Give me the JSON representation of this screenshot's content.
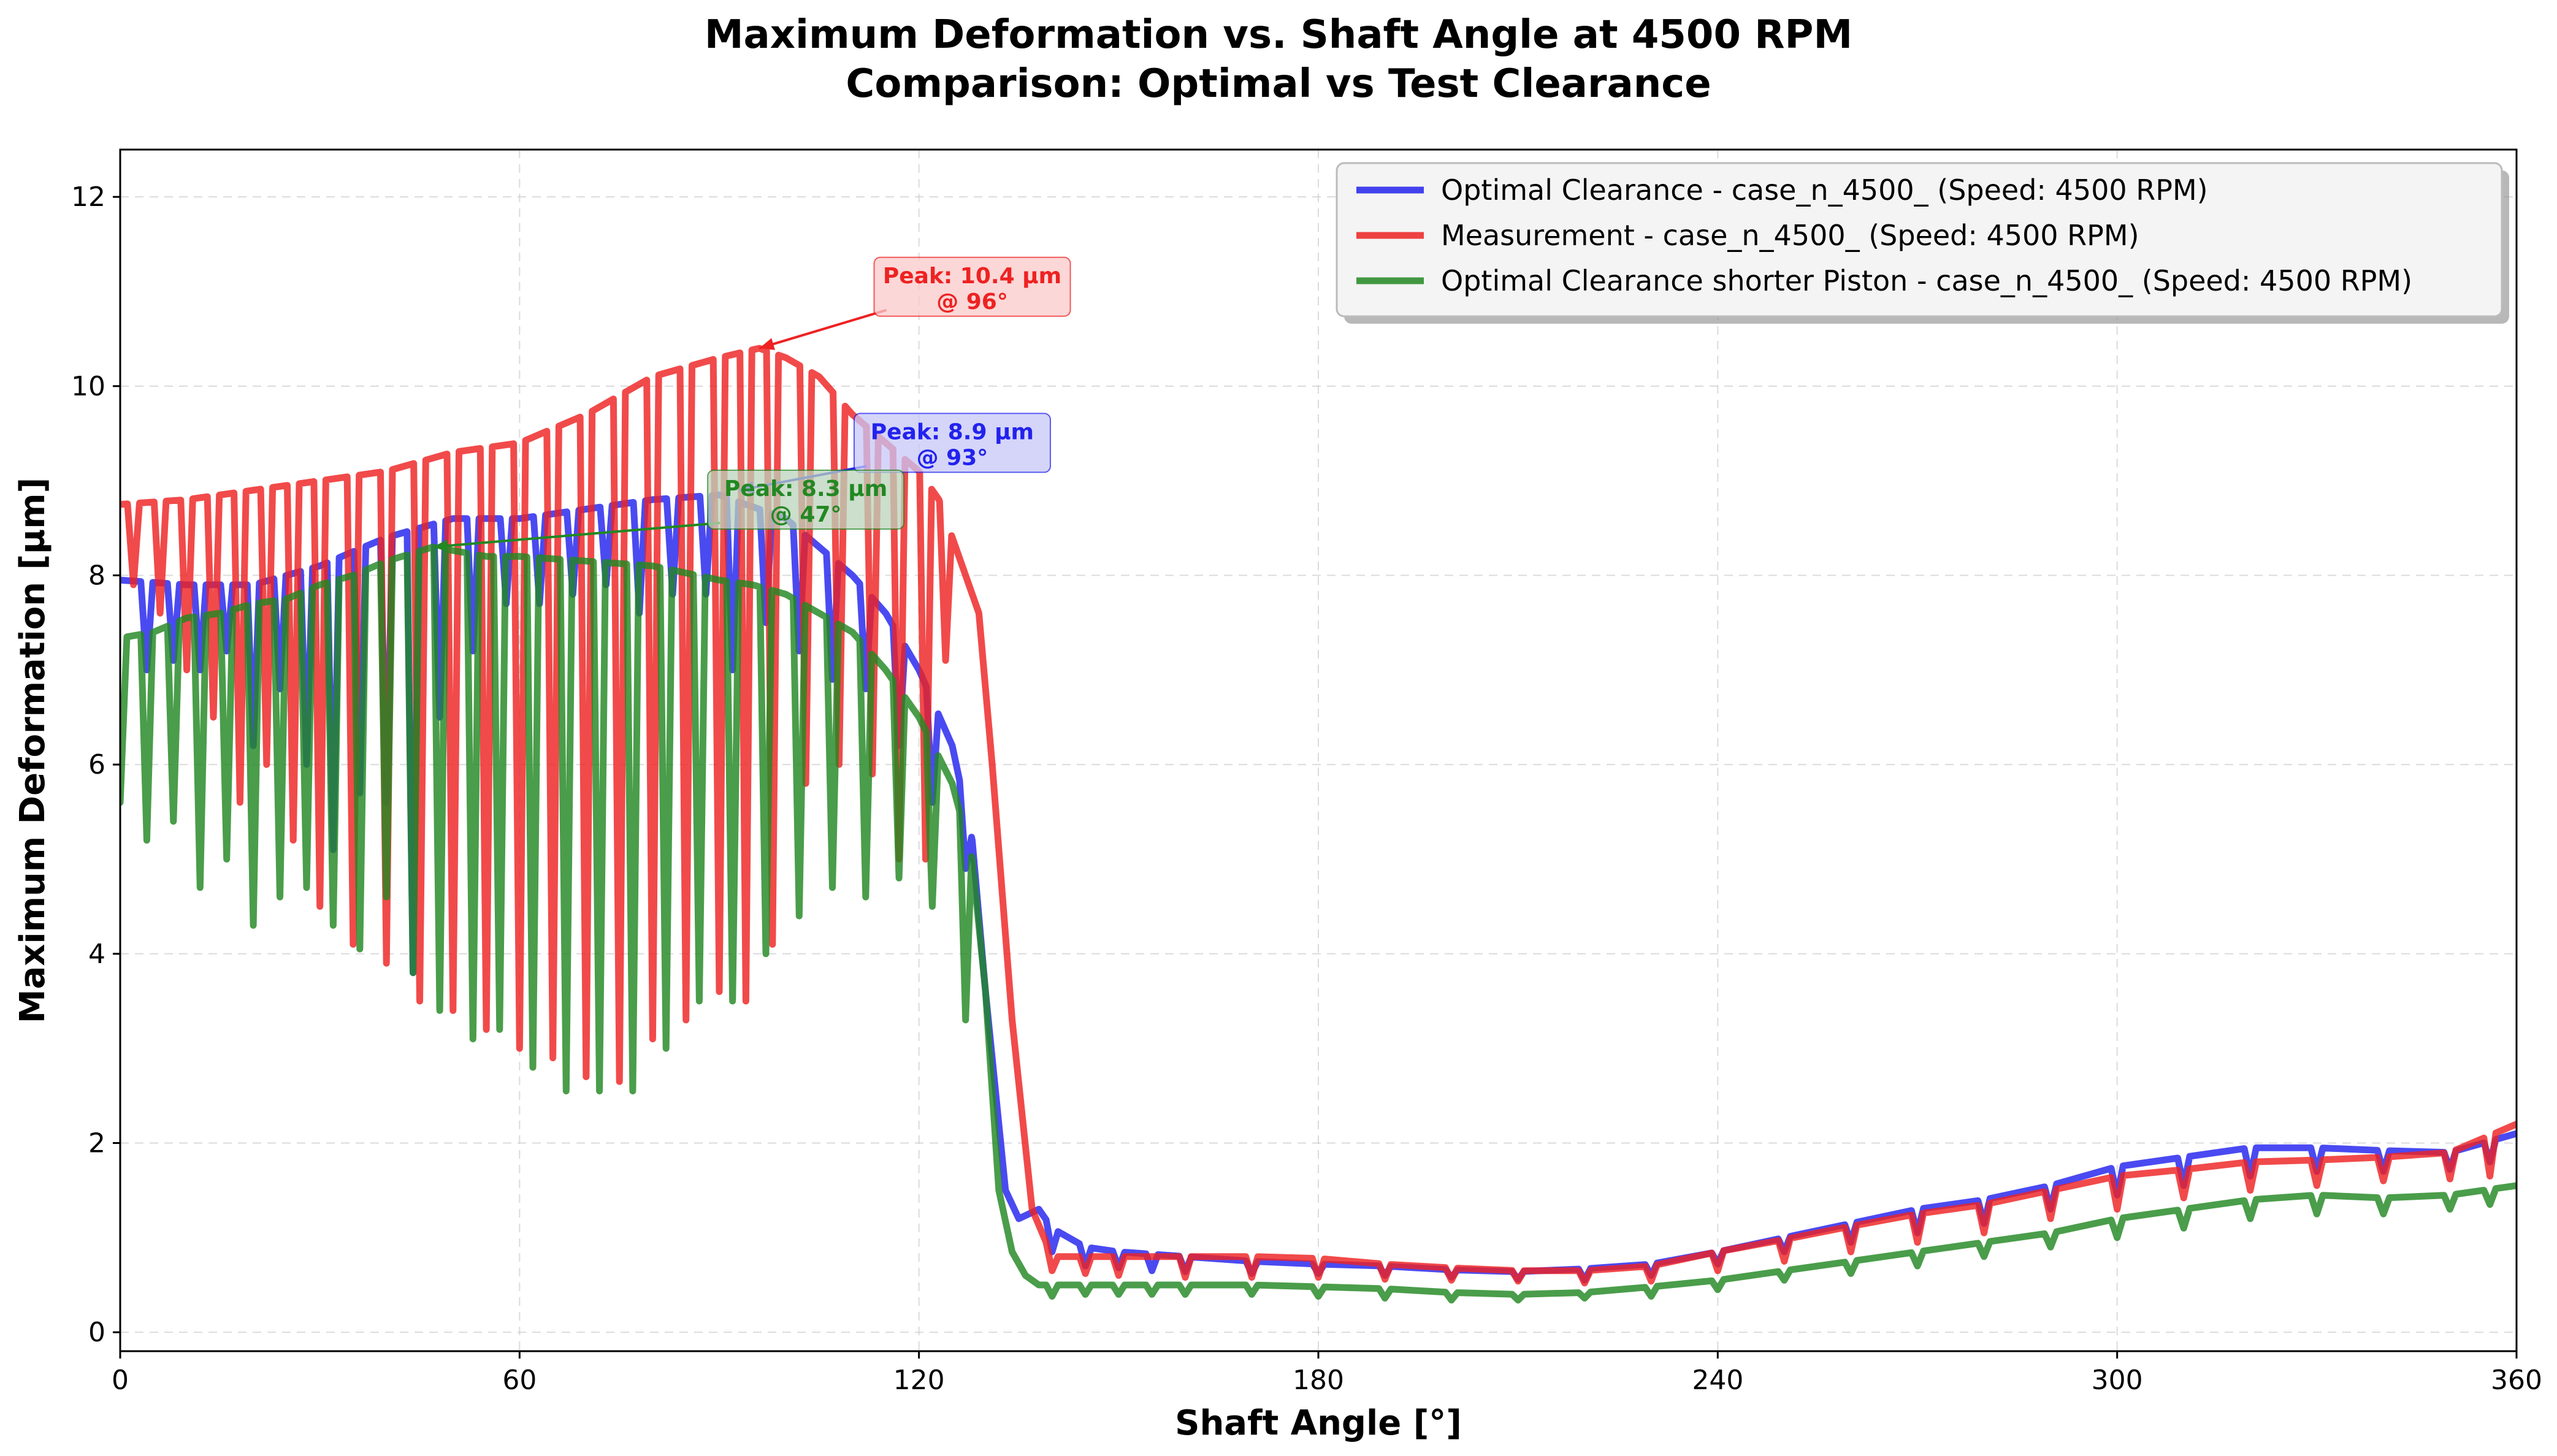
{
  "chart_data": {
    "type": "line",
    "title_line1": "Maximum Deformation vs. Shaft Angle at 4500 RPM",
    "title_line2": "Comparison: Optimal vs Test Clearance",
    "xlabel": "Shaft Angle [°]",
    "ylabel": "Maximum Deformation [µm]",
    "xlim": [
      0,
      360
    ],
    "ylim": [
      -0.2,
      12.5
    ],
    "xticks": [
      0,
      60,
      120,
      180,
      240,
      300,
      360
    ],
    "yticks": [
      0,
      2,
      4,
      6,
      8,
      10,
      12
    ],
    "grid": true,
    "legend_position": "top-right",
    "series": [
      {
        "name": "Optimal Clearance - case_n_4500_ (Speed: 4500 RPM)",
        "color": "#2222ee",
        "baseline": [
          [
            0,
            7.95
          ],
          [
            10,
            7.9
          ],
          [
            20,
            7.9
          ],
          [
            30,
            8.1
          ],
          [
            40,
            8.4
          ],
          [
            50,
            8.6
          ],
          [
            60,
            8.6
          ],
          [
            70,
            8.7
          ],
          [
            80,
            8.8
          ],
          [
            90,
            8.85
          ],
          [
            100,
            8.6
          ],
          [
            105,
            8.3
          ],
          [
            110,
            8.0
          ],
          [
            115,
            7.6
          ],
          [
            120,
            7.0
          ],
          [
            125,
            6.2
          ],
          [
            128,
            5.2
          ],
          [
            130,
            3.6
          ],
          [
            133,
            1.5
          ],
          [
            135,
            1.2
          ],
          [
            138,
            1.3
          ],
          [
            140,
            1.1
          ],
          [
            145,
            0.9
          ],
          [
            150,
            0.85
          ],
          [
            160,
            0.8
          ],
          [
            170,
            0.75
          ],
          [
            180,
            0.72
          ],
          [
            190,
            0.7
          ],
          [
            200,
            0.66
          ],
          [
            210,
            0.64
          ],
          [
            220,
            0.67
          ],
          [
            230,
            0.72
          ],
          [
            240,
            0.85
          ],
          [
            250,
            1.0
          ],
          [
            260,
            1.15
          ],
          [
            270,
            1.3
          ],
          [
            280,
            1.4
          ],
          [
            290,
            1.55
          ],
          [
            300,
            1.75
          ],
          [
            310,
            1.85
          ],
          [
            320,
            1.95
          ],
          [
            330,
            1.95
          ],
          [
            340,
            1.92
          ],
          [
            350,
            1.9
          ],
          [
            360,
            2.1
          ]
        ],
        "dips": [
          [
            4,
            7.0
          ],
          [
            8,
            7.1
          ],
          [
            12,
            7.0
          ],
          [
            16,
            7.2
          ],
          [
            20,
            6.2
          ],
          [
            24,
            6.8
          ],
          [
            28,
            6.0
          ],
          [
            32,
            5.1
          ],
          [
            36,
            5.7
          ],
          [
            40,
            5.6
          ],
          [
            44,
            3.8
          ],
          [
            48,
            6.5
          ],
          [
            53,
            7.2
          ],
          [
            58,
            7.7
          ],
          [
            63,
            7.7
          ],
          [
            68,
            7.8
          ],
          [
            73,
            7.9
          ],
          [
            78,
            7.6
          ],
          [
            83,
            7.8
          ],
          [
            88,
            7.8
          ],
          [
            92,
            7.0
          ],
          [
            97,
            7.5
          ],
          [
            102,
            7.2
          ],
          [
            107,
            6.9
          ],
          [
            112,
            6.8
          ],
          [
            117,
            6.2
          ],
          [
            122,
            5.6
          ],
          [
            127,
            4.9
          ],
          [
            140,
            0.85
          ],
          [
            145,
            0.7
          ],
          [
            150,
            0.68
          ],
          [
            155,
            0.65
          ],
          [
            160,
            0.64
          ],
          [
            170,
            0.62
          ],
          [
            180,
            0.62
          ],
          [
            190,
            0.6
          ],
          [
            200,
            0.58
          ],
          [
            210,
            0.56
          ],
          [
            220,
            0.55
          ],
          [
            230,
            0.6
          ],
          [
            240,
            0.72
          ],
          [
            250,
            0.85
          ],
          [
            260,
            0.95
          ],
          [
            270,
            1.05
          ],
          [
            280,
            1.15
          ],
          [
            290,
            1.3
          ],
          [
            300,
            1.45
          ],
          [
            310,
            1.55
          ],
          [
            320,
            1.65
          ],
          [
            330,
            1.7
          ],
          [
            340,
            1.7
          ],
          [
            350,
            1.72
          ],
          [
            356,
            1.8
          ]
        ]
      },
      {
        "name": "Measurement - case_n_4500_ (Speed: 4500 RPM)",
        "color": "#ee2222",
        "baseline": [
          [
            0,
            8.75
          ],
          [
            10,
            8.8
          ],
          [
            20,
            8.9
          ],
          [
            30,
            9.0
          ],
          [
            40,
            9.1
          ],
          [
            50,
            9.3
          ],
          [
            60,
            9.4
          ],
          [
            70,
            9.7
          ],
          [
            80,
            10.1
          ],
          [
            90,
            10.3
          ],
          [
            96,
            10.4
          ],
          [
            100,
            10.3
          ],
          [
            105,
            10.1
          ],
          [
            110,
            9.7
          ],
          [
            115,
            9.4
          ],
          [
            120,
            9.1
          ],
          [
            123,
            8.8
          ],
          [
            126,
            8.2
          ],
          [
            129,
            7.6
          ],
          [
            131,
            6.0
          ],
          [
            134,
            3.3
          ],
          [
            137,
            1.3
          ],
          [
            140,
            0.8
          ],
          [
            145,
            0.8
          ],
          [
            150,
            0.8
          ],
          [
            160,
            0.8
          ],
          [
            170,
            0.8
          ],
          [
            180,
            0.78
          ],
          [
            190,
            0.72
          ],
          [
            200,
            0.68
          ],
          [
            210,
            0.65
          ],
          [
            220,
            0.65
          ],
          [
            230,
            0.7
          ],
          [
            240,
            0.85
          ],
          [
            250,
            0.98
          ],
          [
            260,
            1.12
          ],
          [
            270,
            1.25
          ],
          [
            280,
            1.35
          ],
          [
            290,
            1.5
          ],
          [
            300,
            1.65
          ],
          [
            310,
            1.72
          ],
          [
            320,
            1.8
          ],
          [
            330,
            1.82
          ],
          [
            340,
            1.85
          ],
          [
            350,
            1.9
          ],
          [
            360,
            2.2
          ]
        ],
        "dips": [
          [
            2,
            7.9
          ],
          [
            6,
            7.6
          ],
          [
            10,
            7.0
          ],
          [
            14,
            6.5
          ],
          [
            18,
            5.6
          ],
          [
            22,
            6.0
          ],
          [
            26,
            5.2
          ],
          [
            30,
            4.5
          ],
          [
            35,
            4.1
          ],
          [
            40,
            3.9
          ],
          [
            45,
            3.5
          ],
          [
            50,
            3.4
          ],
          [
            55,
            3.2
          ],
          [
            60,
            3.0
          ],
          [
            65,
            2.9
          ],
          [
            70,
            2.7
          ],
          [
            75,
            2.65
          ],
          [
            80,
            3.1
          ],
          [
            85,
            3.3
          ],
          [
            90,
            3.6
          ],
          [
            94,
            3.5
          ],
          [
            98,
            4.1
          ],
          [
            103,
            5.8
          ],
          [
            108,
            6.0
          ],
          [
            113,
            5.9
          ],
          [
            117,
            5.0
          ],
          [
            121,
            5.0
          ],
          [
            124,
            7.1
          ],
          [
            140,
            0.65
          ],
          [
            145,
            0.62
          ],
          [
            150,
            0.6
          ],
          [
            160,
            0.58
          ],
          [
            170,
            0.58
          ],
          [
            180,
            0.58
          ],
          [
            190,
            0.56
          ],
          [
            200,
            0.55
          ],
          [
            210,
            0.54
          ],
          [
            220,
            0.52
          ],
          [
            230,
            0.54
          ],
          [
            240,
            0.65
          ],
          [
            250,
            0.75
          ],
          [
            260,
            0.85
          ],
          [
            270,
            0.95
          ],
          [
            280,
            1.05
          ],
          [
            290,
            1.2
          ],
          [
            300,
            1.3
          ],
          [
            310,
            1.42
          ],
          [
            320,
            1.5
          ],
          [
            330,
            1.55
          ],
          [
            340,
            1.6
          ],
          [
            350,
            1.62
          ],
          [
            356,
            1.65
          ]
        ]
      },
      {
        "name": "Optimal Clearance shorter Piston - case_n_4500_ (Speed: 4500 RPM)",
        "color": "#228822",
        "baseline": [
          [
            0,
            5.6
          ],
          [
            1,
            7.35
          ],
          [
            5,
            7.4
          ],
          [
            10,
            7.55
          ],
          [
            15,
            7.6
          ],
          [
            20,
            7.7
          ],
          [
            25,
            7.75
          ],
          [
            30,
            7.9
          ],
          [
            35,
            8.0
          ],
          [
            40,
            8.15
          ],
          [
            47,
            8.3
          ],
          [
            55,
            8.2
          ],
          [
            60,
            8.2
          ],
          [
            70,
            8.15
          ],
          [
            80,
            8.1
          ],
          [
            90,
            7.95
          ],
          [
            95,
            7.9
          ],
          [
            100,
            7.8
          ],
          [
            105,
            7.6
          ],
          [
            110,
            7.4
          ],
          [
            115,
            7.0
          ],
          [
            120,
            6.5
          ],
          [
            125,
            5.8
          ],
          [
            128,
            5.0
          ],
          [
            130,
            3.6
          ],
          [
            132,
            1.5
          ],
          [
            134,
            0.85
          ],
          [
            136,
            0.6
          ],
          [
            138,
            0.5
          ],
          [
            140,
            0.5
          ],
          [
            145,
            0.5
          ],
          [
            150,
            0.5
          ],
          [
            160,
            0.5
          ],
          [
            170,
            0.5
          ],
          [
            180,
            0.48
          ],
          [
            190,
            0.46
          ],
          [
            200,
            0.42
          ],
          [
            210,
            0.4
          ],
          [
            220,
            0.42
          ],
          [
            230,
            0.48
          ],
          [
            240,
            0.55
          ],
          [
            250,
            0.65
          ],
          [
            260,
            0.75
          ],
          [
            270,
            0.85
          ],
          [
            280,
            0.95
          ],
          [
            290,
            1.05
          ],
          [
            300,
            1.2
          ],
          [
            310,
            1.3
          ],
          [
            320,
            1.4
          ],
          [
            330,
            1.45
          ],
          [
            340,
            1.42
          ],
          [
            350,
            1.45
          ],
          [
            355,
            1.5
          ],
          [
            360,
            1.55
          ]
        ],
        "dips": [
          [
            4,
            5.2
          ],
          [
            8,
            5.4
          ],
          [
            12,
            4.7
          ],
          [
            16,
            5.0
          ],
          [
            20,
            4.3
          ],
          [
            24,
            4.6
          ],
          [
            28,
            4.7
          ],
          [
            32,
            4.3
          ],
          [
            36,
            4.05
          ],
          [
            40,
            4.6
          ],
          [
            44,
            3.8
          ],
          [
            48,
            3.4
          ],
          [
            53,
            3.1
          ],
          [
            57,
            3.2
          ],
          [
            62,
            2.8
          ],
          [
            67,
            2.55
          ],
          [
            72,
            2.55
          ],
          [
            77,
            2.55
          ],
          [
            82,
            3.0
          ],
          [
            87,
            3.5
          ],
          [
            92,
            3.5
          ],
          [
            97,
            4.0
          ],
          [
            102,
            4.4
          ],
          [
            107,
            4.7
          ],
          [
            112,
            4.6
          ],
          [
            117,
            4.8
          ],
          [
            122,
            4.5
          ],
          [
            127,
            3.3
          ],
          [
            140,
            0.38
          ],
          [
            145,
            0.4
          ],
          [
            150,
            0.4
          ],
          [
            155,
            0.4
          ],
          [
            160,
            0.4
          ],
          [
            170,
            0.4
          ],
          [
            180,
            0.38
          ],
          [
            190,
            0.36
          ],
          [
            200,
            0.34
          ],
          [
            210,
            0.34
          ],
          [
            220,
            0.36
          ],
          [
            230,
            0.38
          ],
          [
            240,
            0.45
          ],
          [
            250,
            0.55
          ],
          [
            260,
            0.62
          ],
          [
            270,
            0.7
          ],
          [
            280,
            0.8
          ],
          [
            290,
            0.9
          ],
          [
            300,
            1.0
          ],
          [
            310,
            1.1
          ],
          [
            320,
            1.2
          ],
          [
            330,
            1.25
          ],
          [
            340,
            1.25
          ],
          [
            350,
            1.3
          ],
          [
            356,
            1.35
          ]
        ]
      }
    ],
    "annotations": [
      {
        "series": 1,
        "text_line1": "Peak: 10.4 µm",
        "text_line2": "@ 96°",
        "point": [
          96,
          10.4
        ],
        "label_pos": [
          128,
          11.05
        ]
      },
      {
        "series": 0,
        "text_line1": "Peak: 8.9 µm",
        "text_line2": "@ 93°",
        "point": [
          93,
          8.9
        ],
        "label_pos": [
          125,
          9.4
        ]
      },
      {
        "series": 2,
        "text_line1": "Peak: 8.3 µm",
        "text_line2": "@ 47°",
        "point": [
          47,
          8.3
        ],
        "label_pos": [
          103,
          8.8
        ]
      }
    ]
  }
}
